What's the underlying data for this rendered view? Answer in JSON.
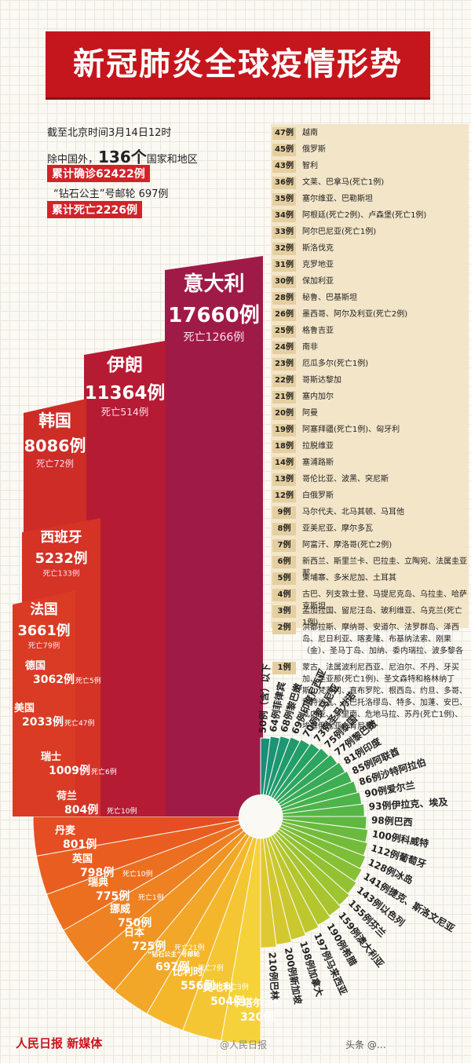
{
  "title": "新冠肺炎全球疫情形势",
  "info": {
    "time": "截至北京时间3月14日12时",
    "countries_pre": "除中国外，",
    "countries_num": "136个",
    "countries_post": "国家和地区",
    "confirmed": "累计确诊62422例",
    "ship": "“钻石公主”号邮轮 697例",
    "deaths": "累计死亡2226例"
  },
  "footer": {
    "logo": "人民日报 新媒体",
    "weibo": "@人民日报",
    "toutiao": "头条 @…"
  },
  "chart_data": {
    "type": "bar",
    "big_bars": [
      {
        "name": "意大利",
        "cases": "17660例",
        "deaths": "死亡1266例",
        "value": 17660
      },
      {
        "name": "伊朗",
        "cases": "11364例",
        "deaths": "死亡514例",
        "value": 11364
      },
      {
        "name": "韩国",
        "cases": "8086例",
        "deaths": "死亡72例",
        "value": 8086
      },
      {
        "name": "西班牙",
        "cases": "5232例",
        "deaths": "死亡133例",
        "value": 5232
      },
      {
        "name": "法国",
        "cases": "3661例",
        "deaths": "死亡79例",
        "value": 3661
      }
    ],
    "left_labels": [
      {
        "name": "德国",
        "cases": "3062例",
        "deaths": "死亡5例"
      },
      {
        "name": "美国",
        "cases": "2033例",
        "deaths": "死亡47例"
      },
      {
        "name": "瑞士",
        "cases": "1009例",
        "deaths": "死亡6例"
      },
      {
        "name": "荷兰",
        "cases": "804例",
        "deaths": "死亡10例"
      },
      {
        "name": "丹麦",
        "cases": "801例",
        "deaths": ""
      },
      {
        "name": "英国",
        "cases": "798例",
        "deaths": "死亡10例"
      },
      {
        "name": "瑞典",
        "cases": "775例",
        "deaths": "死亡1例"
      },
      {
        "name": "挪威",
        "cases": "750例",
        "deaths": ""
      },
      {
        "name": "日本",
        "cases": "725例",
        "deaths": "死亡21例"
      },
      {
        "name": "“钻石公主”号邮轮",
        "cases": "697例",
        "deaths": "死亡7例"
      },
      {
        "name": "比利时",
        "cases": "556例",
        "deaths": "死亡3例"
      },
      {
        "name": "奥地利",
        "cases": "504例",
        "deaths": "死亡1例"
      },
      {
        "name": "卡塔尔",
        "cases": "320例",
        "deaths": ""
      }
    ],
    "right_labels": [
      "50例（含）以下",
      "64例菲律宾",
      "68例黎巴嫩",
      "69例印度尼西亚",
      "70例罗马尼亚",
      "73例圣马力诺",
      "75例泰国",
      "77例黎巴嫩",
      "81例印度",
      "85例阿联酋",
      "86例沙特阿拉伯",
      "90例爱尔兰",
      "93例伊拉克、埃及",
      "98例巴西",
      "100例科威特",
      "112例葡萄牙",
      "128例冰岛",
      "141例捷克、斯洛文尼亚",
      "143例以色列",
      "155例芬兰",
      "159例澳大利亚",
      "190例希腊",
      "197例马来西亚",
      "198例加拿大",
      "200例新加坡",
      "210例巴林"
    ],
    "list": [
      {
        "count": "47例",
        "names": "越南"
      },
      {
        "count": "45例",
        "names": "俄罗斯"
      },
      {
        "count": "43例",
        "names": "智利"
      },
      {
        "count": "36例",
        "names": "文莱、巴拿马(死亡1例)"
      },
      {
        "count": "35例",
        "names": "塞尔维亚、巴勒斯坦"
      },
      {
        "count": "34例",
        "names": "阿根廷(死亡2例)、卢森堡(死亡1例)"
      },
      {
        "count": "33例",
        "names": "阿尔巴尼亚(死亡1例)"
      },
      {
        "count": "32例",
        "names": "斯洛伐克"
      },
      {
        "count": "31例",
        "names": "克罗地亚"
      },
      {
        "count": "30例",
        "names": "保加利亚"
      },
      {
        "count": "28例",
        "names": "秘鲁、巴基斯坦"
      },
      {
        "count": "26例",
        "names": "墨西哥、阿尔及利亚(死亡2例)"
      },
      {
        "count": "25例",
        "names": "格鲁吉亚"
      },
      {
        "count": "24例",
        "names": "南非"
      },
      {
        "count": "23例",
        "names": "厄瓜多尔(死亡1例)"
      },
      {
        "count": "22例",
        "names": "哥斯达黎加"
      },
      {
        "count": "21例",
        "names": "塞内加尔"
      },
      {
        "count": "20例",
        "names": "阿曼"
      },
      {
        "count": "19例",
        "names": "阿塞拜疆(死亡1例)、匈牙利"
      },
      {
        "count": "18例",
        "names": "拉脱维亚"
      },
      {
        "count": "14例",
        "names": "塞浦路斯"
      },
      {
        "count": "13例",
        "names": "哥伦比亚、波黑、突尼斯"
      },
      {
        "count": "12例",
        "names": "白俄罗斯"
      },
      {
        "count": "9例",
        "names": "马尔代夫、北马其顿、马耳他"
      },
      {
        "count": "8例",
        "names": "亚美尼亚、摩尔多瓦"
      },
      {
        "count": "7例",
        "names": "阿富汗、摩洛哥(死亡2例)"
      },
      {
        "count": "6例",
        "names": "新西兰、斯里兰卡、巴拉圭、立陶宛、法属圭亚那"
      },
      {
        "count": "5例",
        "names": "柬埔寨、多米尼加、土耳其"
      },
      {
        "count": "4例",
        "names": "古巴、列支敦士登、马提尼克岛、乌拉圭、哈萨克斯坦"
      },
      {
        "count": "3例",
        "names": "孟加拉国、留尼汪岛、玻利维亚、乌克兰(死亡1例)"
      },
      {
        "count": "2例",
        "names": "洪都拉斯、摩纳哥、安道尔、法罗群岛、泽西岛、尼日利亚、喀麦隆、布基纳法索、刚果（金）、圣马丁岛、加纳、委内瑞拉、波多黎各"
      },
      {
        "count": "1例",
        "names": "蒙古、法属波利尼西亚、尼泊尔、不丹、牙买加、圭亚那(死亡1例)、圣文森特和格林纳丁斯、梵蒂冈、直布罗陀、根西岛、约旦、多哥、科特迪瓦、圣巴托洛缪岛、特多、加蓬、安巴、几内亚、苏里南、危地马拉、苏丹(死亡1例)、埃塞俄比亚、肯尼亚"
      }
    ]
  }
}
